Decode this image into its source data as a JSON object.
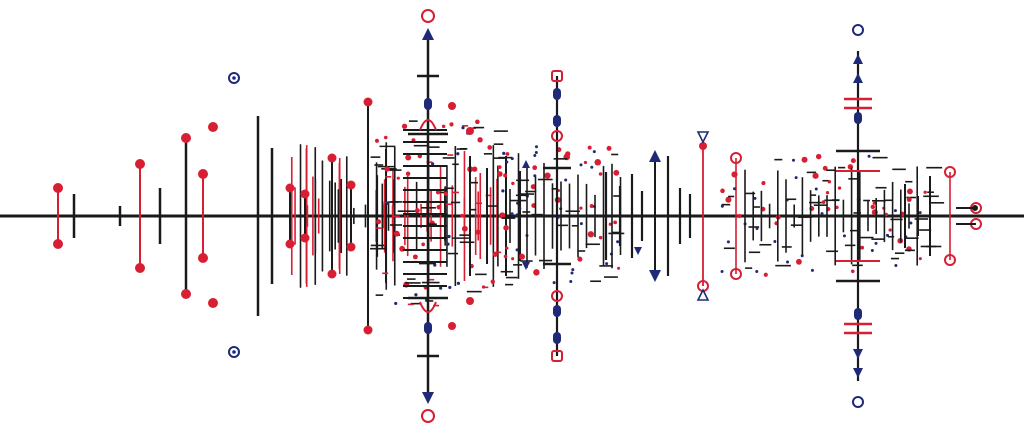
{
  "artwork": {
    "colors": {
      "ink": "#1a1a1a",
      "red": "#d81e32",
      "navy": "#1e2a78",
      "background": "#ffffff"
    },
    "motif_names": [
      "filled-dot",
      "hollow-circle",
      "triangle",
      "capsule",
      "crossbar",
      "bracket"
    ]
  }
}
